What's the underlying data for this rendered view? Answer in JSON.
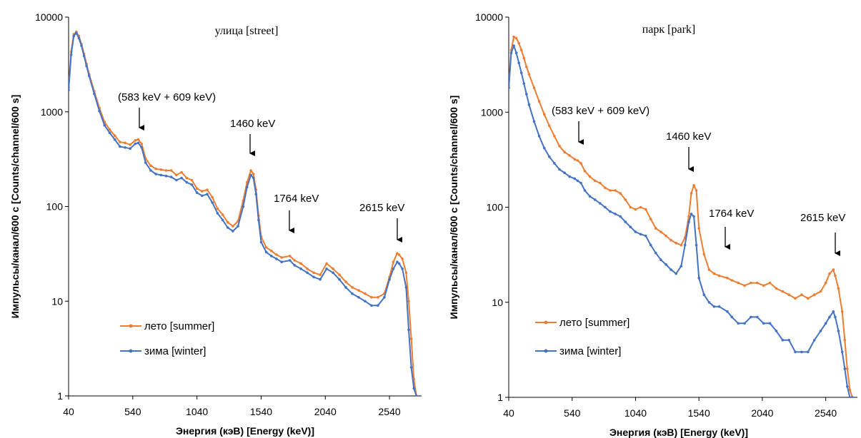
{
  "chart_data": [
    {
      "type": "line",
      "title": "улица [street]",
      "xlabel": "Энергия (кэВ) [Energy (keV)]",
      "ylabel": "Импульсы/канал/600 с [Counts/channel/600 s]",
      "xlim": [
        40,
        2790
      ],
      "ylim": [
        1,
        10000
      ],
      "yscale": "log",
      "xticks": [
        40,
        540,
        1040,
        1540,
        2040,
        2540
      ],
      "yticks": [
        1,
        10,
        100,
        1000,
        10000
      ],
      "ytick_labels": [
        "1",
        "10",
        "100",
        "1000",
        "10000"
      ],
      "grid": false,
      "legend": "lower-left",
      "annotations": [
        {
          "text": "(583 keV + 609 keV)",
          "x": 583,
          "y": 600
        },
        {
          "text": "1460 keV",
          "x": 1460,
          "y": 320
        },
        {
          "text": "1764 keV",
          "x": 1764,
          "y": 68
        },
        {
          "text": "2615 keV",
          "x": 2615,
          "y": 44
        }
      ],
      "series": [
        {
          "name": "лето [summer]",
          "color": "#ed7d31",
          "x": [
            40,
            60,
            80,
            100,
            120,
            140,
            160,
            180,
            200,
            240,
            280,
            320,
            360,
            400,
            440,
            480,
            520,
            560,
            583,
            609,
            640,
            680,
            720,
            760,
            800,
            840,
            880,
            920,
            960,
            1000,
            1040,
            1080,
            1120,
            1160,
            1200,
            1240,
            1280,
            1320,
            1360,
            1400,
            1430,
            1460,
            1480,
            1500,
            1520,
            1540,
            1580,
            1620,
            1660,
            1700,
            1764,
            1800,
            1850,
            1900,
            1950,
            2000,
            2050,
            2100,
            2150,
            2200,
            2250,
            2300,
            2350,
            2400,
            2450,
            2500,
            2540,
            2570,
            2600,
            2615,
            2640,
            2670,
            2690,
            2710,
            2730,
            2750
          ],
          "y": [
            1800,
            4300,
            6600,
            7000,
            6300,
            5200,
            4100,
            3200,
            2500,
            1650,
            1100,
            780,
            650,
            560,
            480,
            470,
            450,
            500,
            510,
            460,
            320,
            270,
            250,
            245,
            240,
            240,
            215,
            230,
            200,
            190,
            155,
            145,
            150,
            125,
            95,
            82,
            68,
            62,
            70,
            115,
            180,
            240,
            220,
            150,
            80,
            48,
            37,
            34,
            31,
            29,
            30,
            27,
            25,
            22,
            20,
            19,
            25,
            22,
            19,
            16,
            14,
            13,
            12,
            11,
            11,
            12,
            18,
            26,
            32,
            31,
            28,
            20,
            10,
            4,
            1.5,
            1
          ]
        },
        {
          "name": "зима [winter]",
          "color": "#4472c4",
          "x": [
            40,
            60,
            80,
            100,
            120,
            140,
            160,
            180,
            200,
            240,
            280,
            320,
            360,
            400,
            440,
            480,
            520,
            560,
            583,
            609,
            640,
            680,
            720,
            760,
            800,
            840,
            880,
            920,
            960,
            1000,
            1040,
            1080,
            1120,
            1160,
            1200,
            1240,
            1280,
            1320,
            1360,
            1400,
            1430,
            1460,
            1480,
            1500,
            1520,
            1540,
            1580,
            1620,
            1660,
            1700,
            1764,
            1800,
            1850,
            1900,
            1950,
            2000,
            2050,
            2100,
            2150,
            2200,
            2250,
            2300,
            2350,
            2400,
            2450,
            2500,
            2540,
            2570,
            2600,
            2615,
            2640,
            2670,
            2690,
            2710,
            2730,
            2750
          ],
          "y": [
            1700,
            4000,
            6300,
            6800,
            6000,
            5000,
            3900,
            3050,
            2400,
            1550,
            1020,
            720,
            600,
            510,
            430,
            420,
            410,
            460,
            470,
            420,
            290,
            240,
            220,
            215,
            210,
            205,
            190,
            200,
            180,
            170,
            140,
            130,
            135,
            110,
            85,
            72,
            60,
            55,
            62,
            100,
            160,
            215,
            200,
            135,
            72,
            42,
            33,
            30,
            28,
            26,
            27,
            24,
            22,
            20,
            18,
            17,
            22,
            20,
            17,
            14,
            12,
            11,
            10,
            9,
            9,
            11,
            17,
            22,
            26,
            25,
            22,
            14,
            5,
            2,
            1.2,
            1
          ]
        }
      ]
    },
    {
      "type": "line",
      "title": "парк [park]",
      "xlabel": "Энергия (кэВ) [Energy (keV)]",
      "ylabel": "Импульсы/канал/600 с [Counts/channel/600 s]",
      "xlim": [
        40,
        2790
      ],
      "ylim": [
        1,
        10000
      ],
      "yscale": "log",
      "xticks": [
        40,
        540,
        1040,
        1540,
        2040,
        2540
      ],
      "yticks": [
        1,
        10,
        100,
        1000,
        10000
      ],
      "ytick_labels": [
        "1",
        "10",
        "100",
        "1000",
        "10000"
      ],
      "grid": false,
      "legend": "lower-left",
      "annotations": [
        {
          "text": "(583 keV + 609 keV)",
          "x": 583,
          "y": 520
        },
        {
          "text": "1460 keV",
          "x": 1460,
          "y": 270
        },
        {
          "text": "1764 keV",
          "x": 1764,
          "y": 40
        },
        {
          "text": "2615 keV",
          "x": 2615,
          "y": 33
        }
      ],
      "series": [
        {
          "name": "лето [summer]",
          "color": "#ed7d31",
          "x": [
            40,
            60,
            80,
            100,
            120,
            140,
            160,
            180,
            200,
            240,
            280,
            320,
            360,
            400,
            440,
            480,
            520,
            560,
            583,
            609,
            640,
            680,
            720,
            760,
            800,
            840,
            880,
            920,
            960,
            1000,
            1040,
            1080,
            1120,
            1160,
            1200,
            1240,
            1280,
            1320,
            1360,
            1400,
            1430,
            1460,
            1480,
            1500,
            1520,
            1540,
            1580,
            1620,
            1660,
            1700,
            1764,
            1800,
            1850,
            1900,
            1950,
            2000,
            2050,
            2100,
            2150,
            2200,
            2250,
            2300,
            2350,
            2400,
            2450,
            2500,
            2540,
            2570,
            2600,
            2615,
            2640,
            2670,
            2690,
            2710,
            2730,
            2750
          ],
          "y": [
            1900,
            4500,
            6200,
            6000,
            5300,
            4500,
            3700,
            3000,
            2500,
            1800,
            1300,
            950,
            720,
            560,
            440,
            380,
            350,
            320,
            310,
            290,
            240,
            210,
            190,
            180,
            160,
            150,
            150,
            140,
            120,
            100,
            95,
            100,
            95,
            75,
            60,
            55,
            50,
            45,
            42,
            40,
            48,
            80,
            140,
            170,
            150,
            60,
            32,
            22,
            20,
            19,
            18,
            17,
            16,
            15,
            16,
            16,
            15,
            16,
            14,
            13,
            12,
            11,
            12,
            11,
            12,
            13,
            16,
            20,
            22,
            19,
            14,
            8,
            4,
            2,
            1.2,
            1
          ]
        },
        {
          "name": "зима [winter]",
          "color": "#4472c4",
          "x": [
            40,
            60,
            80,
            100,
            120,
            140,
            160,
            180,
            200,
            240,
            280,
            320,
            360,
            400,
            440,
            480,
            520,
            560,
            583,
            609,
            640,
            680,
            720,
            760,
            800,
            840,
            880,
            920,
            960,
            1000,
            1040,
            1080,
            1120,
            1160,
            1200,
            1240,
            1280,
            1320,
            1360,
            1400,
            1430,
            1460,
            1480,
            1500,
            1520,
            1540,
            1580,
            1620,
            1660,
            1700,
            1764,
            1800,
            1850,
            1900,
            1950,
            2000,
            2050,
            2100,
            2150,
            2200,
            2250,
            2300,
            2350,
            2400,
            2450,
            2500,
            2540,
            2570,
            2600,
            2615,
            2640,
            2670,
            2690,
            2710,
            2730,
            2750
          ],
          "y": [
            1800,
            4200,
            5000,
            4200,
            3300,
            2600,
            2000,
            1550,
            1200,
            800,
            560,
            420,
            340,
            290,
            250,
            230,
            210,
            200,
            190,
            180,
            150,
            130,
            120,
            110,
            100,
            90,
            85,
            80,
            70,
            62,
            55,
            52,
            50,
            40,
            33,
            28,
            25,
            22,
            20,
            24,
            40,
            70,
            85,
            80,
            40,
            18,
            12,
            10,
            9,
            9,
            8,
            7,
            6,
            6,
            7,
            7,
            6,
            6,
            5,
            4,
            4,
            3,
            3,
            3,
            4,
            5,
            6,
            7,
            8,
            7,
            5,
            3,
            2,
            1.3,
            1,
            1
          ]
        }
      ]
    }
  ]
}
